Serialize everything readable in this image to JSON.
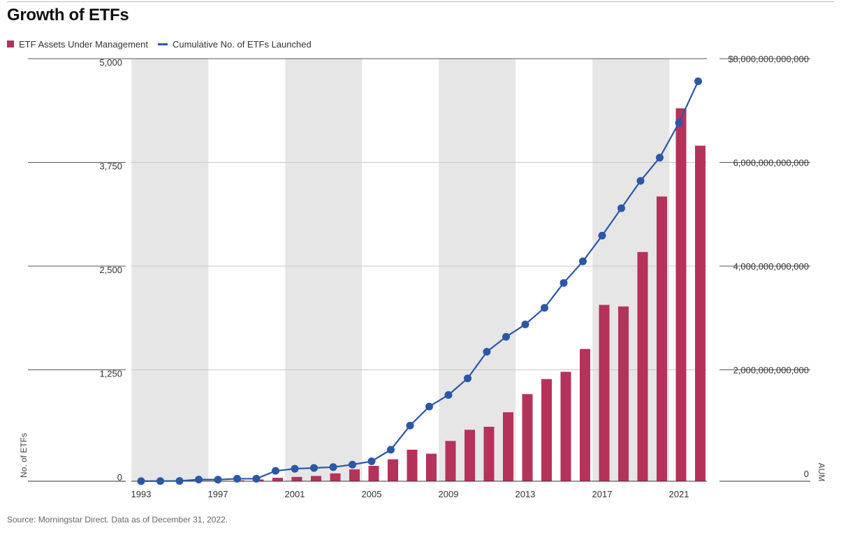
{
  "header": {
    "title": "Growth of ETFs"
  },
  "footer": {
    "source": "Source: Morningstar Direct. Data as of December 31, 2022."
  },
  "colors": {
    "bars": "#B5325A",
    "line": "#2B57A7",
    "shade": "#E6E6E6",
    "grid": "#C8C8C8"
  },
  "chart_data": {
    "type": "bar+line",
    "title": "Growth of ETFs",
    "legend_position": "top-left",
    "x": [
      1993,
      1994,
      1995,
      1996,
      1997,
      1998,
      1999,
      2000,
      2001,
      2002,
      2003,
      2004,
      2005,
      2006,
      2007,
      2008,
      2009,
      2010,
      2011,
      2012,
      2013,
      2014,
      2015,
      2016,
      2017,
      2018,
      2019,
      2020,
      2021,
      2022
    ],
    "x_tick_labels": [
      "1993",
      "1997",
      "2001",
      "2005",
      "2009",
      "2013",
      "2017",
      "2021"
    ],
    "series": [
      {
        "name": "ETF Assets Under Management",
        "type": "bar",
        "axis": "right",
        "values": [
          0,
          0,
          1000000000,
          2000000000,
          7000000000,
          16000000000,
          34000000000,
          66000000000,
          83000000000,
          102000000000,
          151000000000,
          228000000000,
          296000000000,
          423000000000,
          608000000000,
          531000000000,
          777000000000,
          992000000000,
          1050000000000,
          1330000000000,
          1680000000000,
          1970000000000,
          2110000000000,
          2550000000000,
          3400000000000,
          3370000000000,
          4420000000000,
          5490000000000,
          7190000000000,
          6470000000000
        ]
      },
      {
        "name": "Cumulative No. of ETFs Launched",
        "type": "line",
        "axis": "left",
        "values": [
          1,
          2,
          3,
          20,
          19,
          30,
          30,
          125,
          150,
          160,
          170,
          200,
          240,
          380,
          670,
          900,
          1040,
          1240,
          1560,
          1740,
          1890,
          2090,
          2390,
          2650,
          2960,
          3290,
          3620,
          3900,
          4320,
          4820
        ]
      }
    ],
    "y_left": {
      "label": "No. of ETFs",
      "ticks": [
        "0",
        "1,250",
        "2,500",
        "3,750",
        "5,000"
      ],
      "lim": [
        0,
        5000
      ]
    },
    "y_right": {
      "label": "AUM",
      "ticks": [
        "0",
        "2,000,000,000,000",
        "4,000,000,000,000",
        "6,000,000,000,000",
        "$8,000,000,000,000"
      ],
      "lim": [
        0,
        8000000000000
      ]
    },
    "shaded_periods": [
      [
        1993,
        1996
      ],
      [
        2001,
        2004
      ],
      [
        2009,
        2012
      ],
      [
        2017,
        2020
      ]
    ],
    "grid": true
  }
}
